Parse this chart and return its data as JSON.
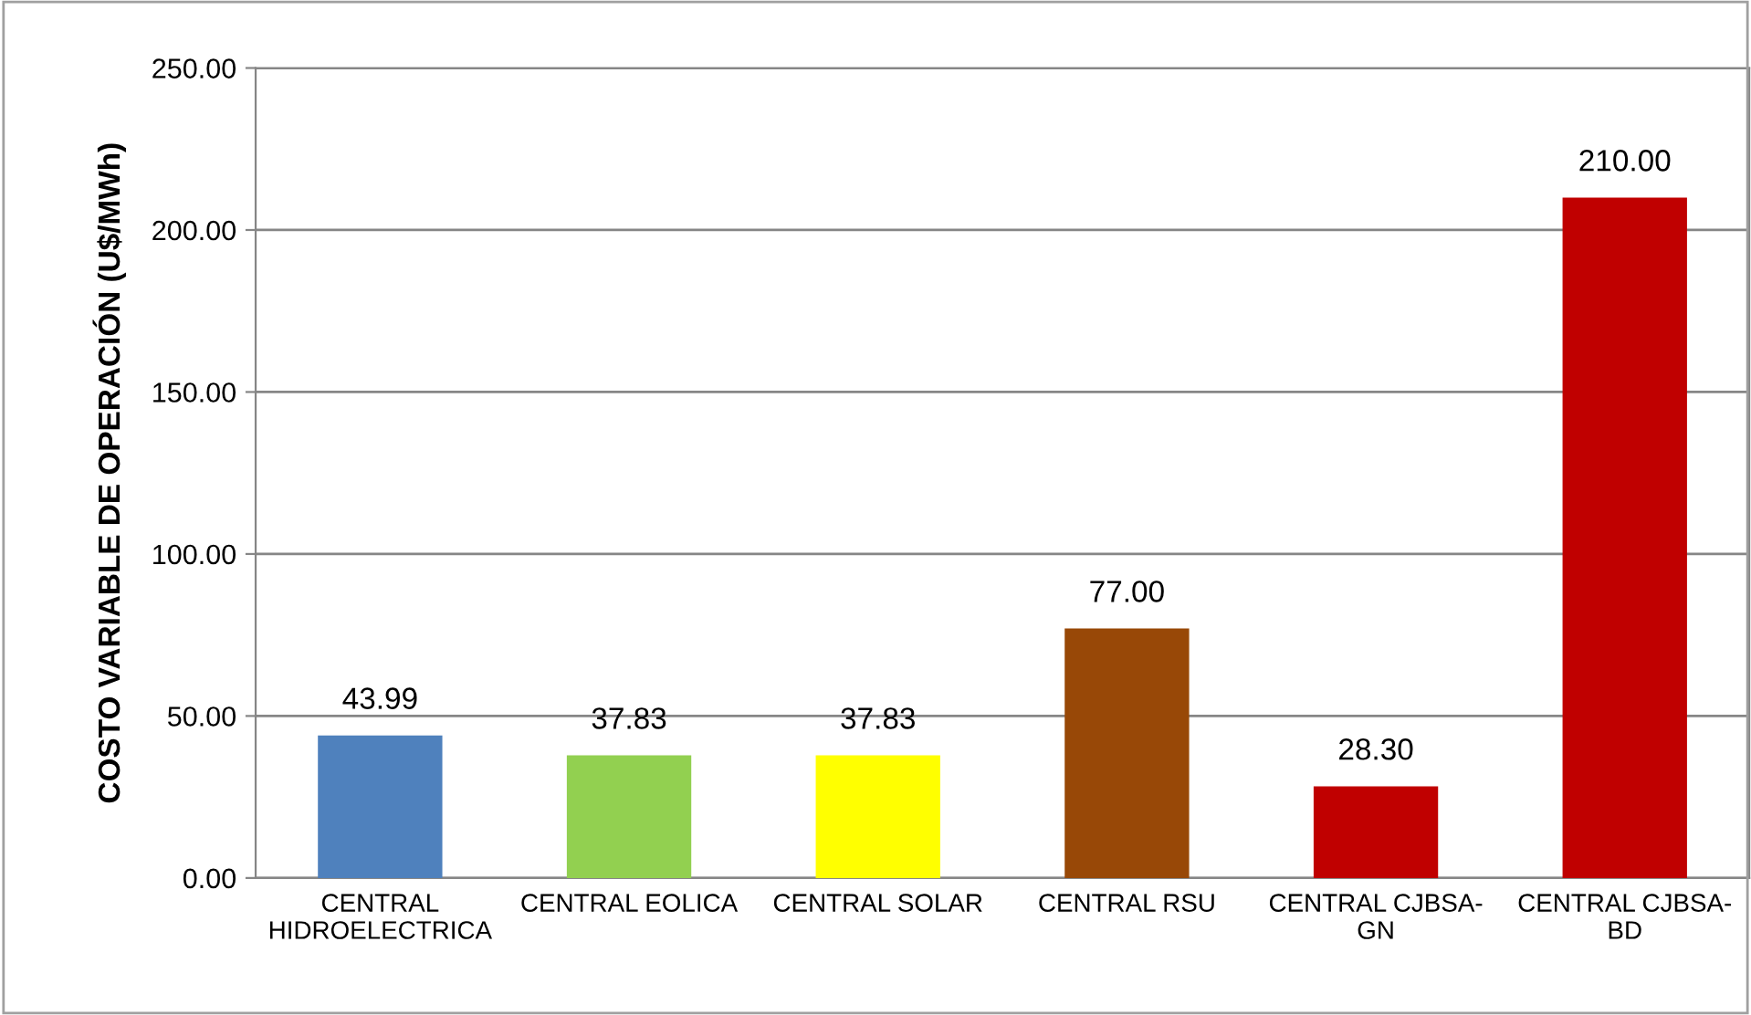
{
  "chart_data": {
    "type": "bar",
    "ylabel": "COSTO VARIABLE DE OPERACIÓN (U$/MWh)",
    "categories": [
      "CENTRAL HIDROELECTRICA",
      "CENTRAL EOLICA",
      "CENTRAL SOLAR",
      "CENTRAL RSU",
      "CENTRAL CJBSA-GN",
      "CENTRAL CJBSA-BD"
    ],
    "values": [
      43.99,
      37.83,
      37.83,
      77.0,
      28.3,
      210.0
    ],
    "colors": [
      "#4f81bd",
      "#92d050",
      "#ffff00",
      "#984807",
      "#c00000",
      "#c00000"
    ],
    "value_labels": [
      "43.99",
      "37.83",
      "37.83",
      "77.00",
      "28.30",
      "210.00"
    ],
    "ylim": [
      0,
      250
    ],
    "yticks": [
      {
        "value": 0,
        "label": "0.00"
      },
      {
        "value": 50,
        "label": "50.00"
      },
      {
        "value": 100,
        "label": "100.00"
      },
      {
        "value": 150,
        "label": "150.00"
      },
      {
        "value": 200,
        "label": "200.00"
      },
      {
        "value": 250,
        "label": "250.00"
      }
    ],
    "grid": "y",
    "legend": false
  }
}
